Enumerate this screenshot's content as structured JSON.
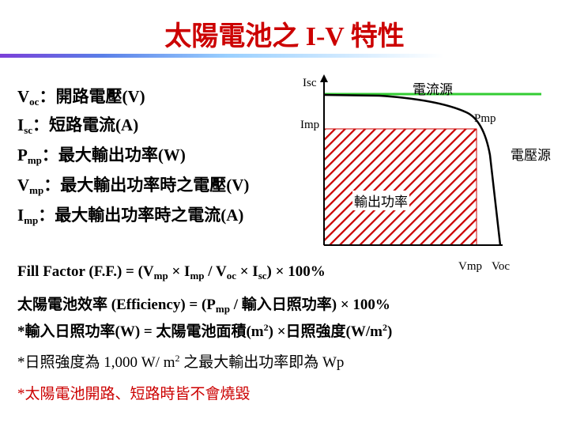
{
  "title": "太陽電池之 I-V 特性",
  "definitions": [
    {
      "sym": "V",
      "sub": "oc",
      "text": "：開路電壓(V)"
    },
    {
      "sym": "I",
      "sub": "sc",
      "text": "：短路電流(A)"
    },
    {
      "sym": "P",
      "sub": "mp",
      "text": "：最大輸出功率(W)"
    },
    {
      "sym": "V",
      "sub": "mp",
      "text": "：最大輸出功率時之電壓(V)"
    },
    {
      "sym": "I",
      "sub": "mp",
      "text": "：最大輸出功率時之電流(A)"
    }
  ],
  "chart": {
    "y_labels": {
      "isc": "Isc",
      "imp": "Imp"
    },
    "x_labels": {
      "vmp": "Vmp",
      "voc": "Voc"
    },
    "point_label": "Pmp",
    "current_source": "電流源",
    "voltage_source": "電壓源",
    "region_label": "輸出功率",
    "colors": {
      "curve": "#000000",
      "green_line": "#33cc33",
      "hatch": "#cc0000"
    }
  },
  "formulas": {
    "fill_factor": {
      "a": "Fill Factor (F.F.) = (V",
      "a_sub": "mp",
      "b": " × I",
      "b_sub": "mp",
      "c": " / V",
      "c_sub": "oc",
      "d": " × I",
      "d_sub": "sc",
      "e": ") × 100%"
    },
    "efficiency": {
      "a": "太陽電池效率 (Efficiency) = (P",
      "a_sub": "mp",
      "b": " / 輸入日照功率) × 100%"
    },
    "input_power": {
      "a": "*輸入日照功率(W) = 太陽電池面積(m",
      "a_sup": "2",
      "b": ") ×日照強度(W/m",
      "b_sup": "2",
      "c": ")"
    },
    "wp": {
      "a": "*日照強度為 1,000 W/ m",
      "a_sup": "2",
      "b": " 之最大輸出功率即為 Wp"
    },
    "note": "*太陽電池開路、短路時皆不會燒毀"
  }
}
